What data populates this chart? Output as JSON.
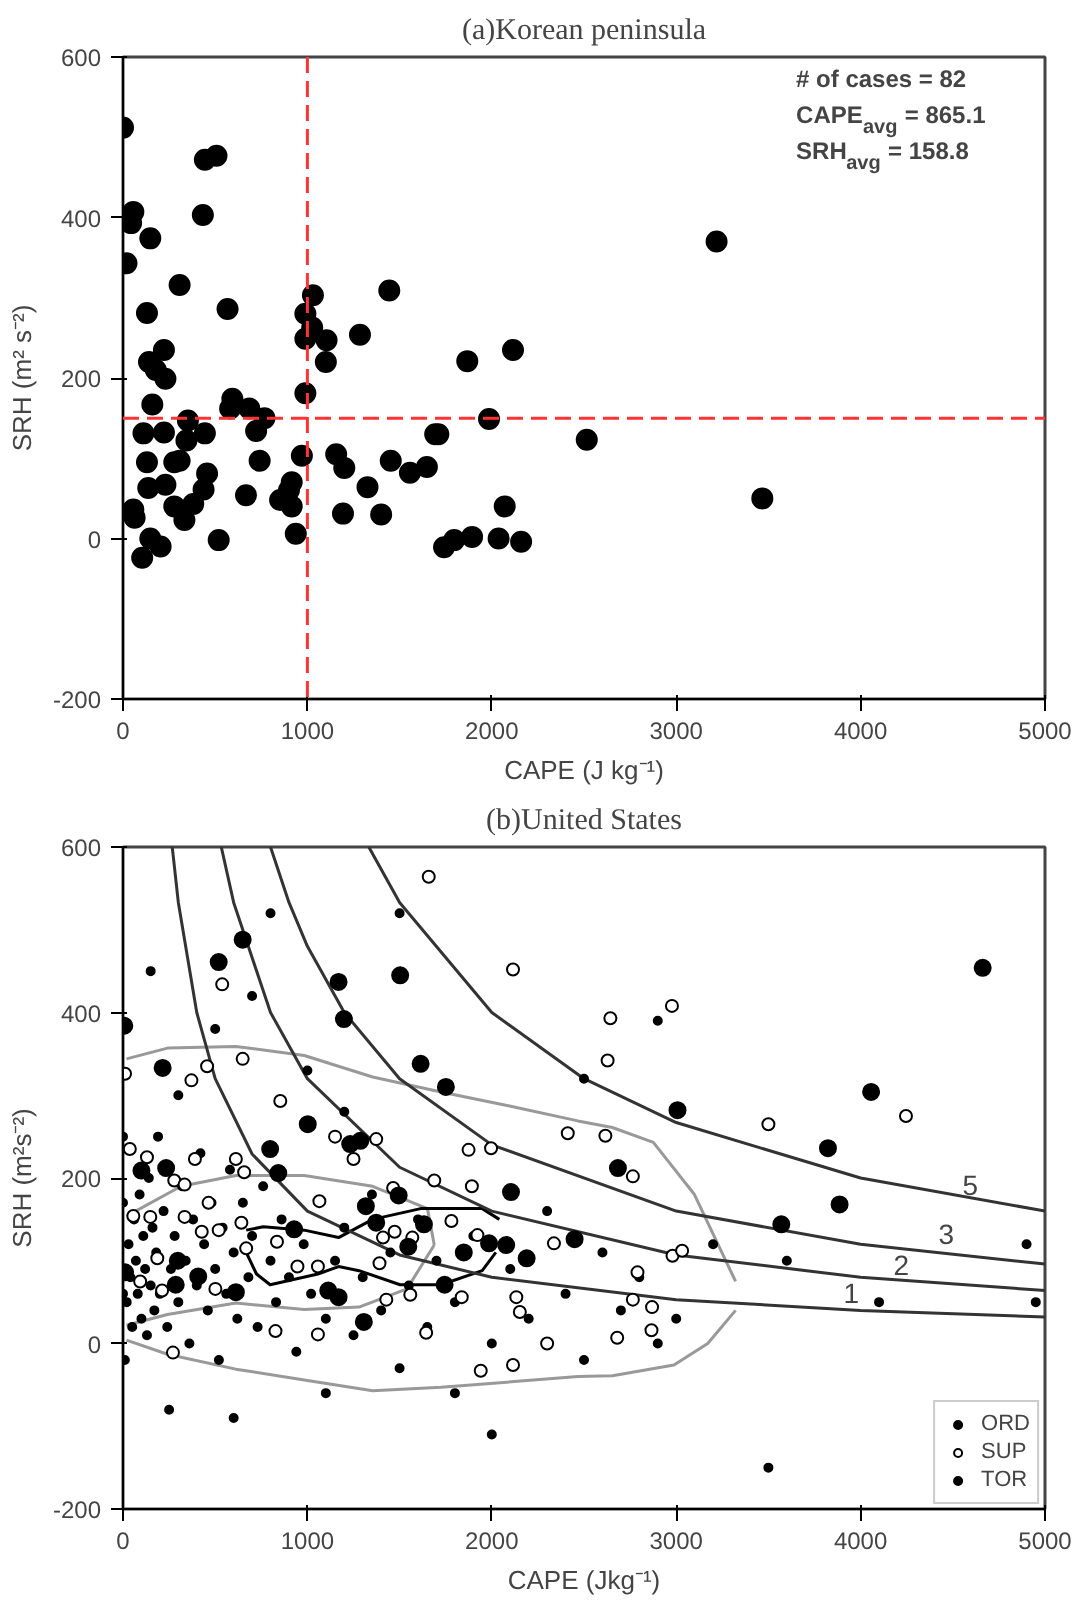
{
  "chart_data": [
    {
      "type": "scatter",
      "title": "(a)Korean peninsula",
      "xlabel": "CAPE (J kg⁻¹)",
      "ylabel": "SRH (m² s⁻²)",
      "xlim": [
        0,
        5000
      ],
      "ylim": [
        -200,
        600
      ],
      "xticks": [
        0,
        1000,
        2000,
        3000,
        4000,
        5000
      ],
      "yticks": [
        -200,
        0,
        200,
        400,
        600
      ],
      "grid": false,
      "series": [
        {
          "color": "#000000",
          "marker": "circle",
          "x": [
            0,
            56,
            44,
            148,
            19,
            444,
            507,
            433,
            307,
            567,
            130,
            222,
            141,
            178,
            230,
            159,
            593,
            581,
            685,
            767,
            722,
            352,
            344,
            444,
            111,
            222,
            130,
            278,
            307,
            456,
            741,
            137,
            230,
            437,
            667,
            278,
            381,
            333,
            56,
            63,
            148,
            204,
            104,
            519,
            915,
            900,
            852,
            915,
            937,
            970,
            989,
            1030,
            989,
            1026,
            989,
            1104,
            1100,
            1285,
            1444,
            1156,
            1200,
            1193,
            1326,
            1400,
            1452,
            1556,
            1648,
            1693,
            1710,
            1867,
            2115,
            1985,
            2070,
            1741,
            1796,
            1893,
            2037,
            2159,
            2515,
            3219,
            3467
          ],
          "values": [
            512,
            407,
            393,
            374,
            343,
            472,
            477,
            403,
            316,
            286,
            281,
            235,
            220,
            210,
            199,
            167,
            174,
            162,
            162,
            150,
            134,
            147,
            122,
            131,
            131,
            132,
            95,
            95,
            97,
            81,
            97,
            63,
            67,
            61,
            54,
            40,
            43,
            23,
            36,
            26,
            0,
            -10,
            -24,
            -2,
            70,
            60,
            48,
            40,
            6,
            103,
            181,
            303,
            280,
            263,
            249,
            247,
            220,
            254,
            309,
            105,
            88,
            31,
            64,
            30,
            97,
            82,
            89,
            130,
            130,
            221,
            235,
            149,
            40,
            -11,
            -2,
            2,
            0,
            -4,
            123,
            370,
            50
          ]
        }
      ],
      "ref_lines": [
        {
          "axis": "x",
          "value": 1000,
          "color": "#ff3333",
          "line_style": "dashed"
        },
        {
          "axis": "y",
          "value": 150,
          "color": "#ff3333",
          "line_style": "dashed"
        }
      ],
      "annotations": [
        "# of cases =   82",
        "CAPE$_{avg}$  =  865.1",
        "SRH$_{avg}$    =  158.8"
      ]
    },
    {
      "type": "scatter",
      "title": "(b)United States",
      "xlabel": "CAPE (Jkg⁻¹)",
      "ylabel": "SRH (m²s⁻²)",
      "xlim": [
        0,
        5000
      ],
      "ylim": [
        -200,
        600
      ],
      "xticks": [
        0,
        1000,
        2000,
        3000,
        4000,
        5000
      ],
      "yticks": [
        -200,
        0,
        200,
        400,
        600
      ],
      "grid": false,
      "legend": "bottom right",
      "series": [
        {
          "type": "line",
          "color": "#999999",
          "x": [
            19,
            241,
            612,
            983,
            1354,
            1725,
            2096,
            2467,
            2654,
            2876,
            3099,
            3322
          ],
          "values": [
            344,
            357,
            359,
            348,
            322,
            304,
            287,
            269,
            261,
            243,
            180,
            75
          ]
        },
        {
          "type": "line",
          "color": "#999999",
          "x": [
            19,
            241,
            612,
            983,
            1354,
            1725,
            2467,
            2654,
            2988,
            3171,
            3322
          ],
          "values": [
            4,
            -13,
            -31,
            -44,
            -57,
            -53,
            -40,
            -39,
            -26,
            0,
            40
          ]
        },
        {
          "type": "line",
          "color": "#999999",
          "x": [
            19,
            315,
            612,
            983,
            1354,
            1651,
            1688
          ],
          "values": [
            154,
            190,
            203,
            203,
            190,
            163,
            119
          ]
        },
        {
          "type": "line",
          "color": "#999999",
          "x": [
            19,
            241,
            612,
            983,
            1280,
            1540,
            1688
          ],
          "values": [
            22,
            35,
            49,
            41,
            44,
            66,
            119
          ]
        },
        {
          "type": "line",
          "color": "#000000",
          "x": [
            668,
            761,
            983,
            1169,
            1354,
            1614,
            1948,
            2041
          ],
          "values": [
            137,
            141,
            137,
            128,
            150,
            163,
            163,
            150
          ]
        },
        {
          "type": "line",
          "color": "#000000",
          "x": [
            668,
            724,
            798,
            1057,
            1169,
            1280,
            1503,
            1725,
            1948,
            2022
          ],
          "values": [
            110,
            84,
            71,
            84,
            93,
            88,
            71,
            71,
            88,
            110
          ]
        },
        {
          "type": "line",
          "color": "#333333",
          "x": [
            267,
            300,
            400,
            500,
            700,
            1000,
            1500,
            2000,
            3000,
            4000,
            5000
          ],
          "values": [
            600,
            533,
            400,
            320,
            229,
            160,
            107,
            80,
            53,
            40,
            32
          ]
        },
        {
          "type": "line",
          "color": "#333333",
          "x": [
            533,
            600,
            800,
            1000,
            1500,
            2000,
            3000,
            4000,
            5000
          ],
          "values": [
            600,
            533,
            400,
            320,
            213,
            160,
            107,
            80,
            64
          ]
        },
        {
          "type": "line",
          "color": "#333333",
          "x": [
            800,
            900,
            1000,
            1200,
            1500,
            2000,
            3000,
            4000,
            5000
          ],
          "values": [
            600,
            533,
            480,
            400,
            320,
            240,
            160,
            120,
            96
          ]
        },
        {
          "type": "line",
          "color": "#333333",
          "x": [
            1333,
            1500,
            2000,
            2500,
            3000,
            4000,
            5000
          ],
          "values": [
            600,
            533,
            400,
            320,
            267,
            200,
            160
          ]
        },
        {
          "type": "scatter",
          "name": "ORD",
          "color": "#000000",
          "marker": "circle",
          "x": [
            20,
            30,
            40,
            50,
            60,
            70,
            80,
            90,
            100,
            110,
            120,
            130,
            140,
            150,
            160,
            170,
            180,
            190,
            200,
            220,
            240,
            260,
            280,
            300,
            320,
            340,
            360,
            380,
            400,
            420,
            440,
            460,
            480,
            500,
            520,
            540,
            560,
            580,
            600,
            620,
            650,
            680,
            700,
            730,
            760,
            800,
            830,
            860,
            900,
            940,
            980,
            1020,
            1100,
            1150,
            1200,
            1250,
            1300,
            1350,
            1400,
            1450,
            1500,
            1550,
            1600,
            1650,
            1700,
            1800,
            1900,
            2000,
            2100,
            2200,
            2300,
            2400,
            2500,
            2600,
            2700,
            2800,
            2900,
            3000,
            300,
            500,
            150,
            700,
            1000,
            1200,
            250,
            600,
            1100,
            2000,
            2500,
            3200,
            3600,
            4100,
            4900,
            4950,
            1800,
            3500,
            800,
            1500,
            2900,
            0,
            0,
            0,
            10
          ],
          "values": [
            50,
            120,
            80,
            20,
            150,
            100,
            60,
            180,
            30,
            130,
            90,
            10,
            200,
            70,
            140,
            40,
            110,
            250,
            60,
            160,
            20,
            90,
            130,
            50,
            190,
            100,
            0,
            150,
            70,
            230,
            120,
            40,
            170,
            90,
            -20,
            140,
            60,
            210,
            110,
            30,
            170,
            80,
            130,
            20,
            190,
            100,
            50,
            150,
            80,
            -10,
            120,
            60,
            30,
            100,
            140,
            10,
            80,
            180,
            40,
            110,
            -30,
            70,
            150,
            20,
            100,
            50,
            130,
            0,
            90,
            30,
            160,
            60,
            -20,
            110,
            40,
            80,
            0,
            30,
            300,
            380,
            450,
            420,
            330,
            280,
            -80,
            -90,
            -60,
            -110,
            320,
            120,
            100,
            50,
            120,
            50,
            -60,
            -150,
            520,
            520,
            390,
            250,
            170,
            60,
            -20
          ]
        },
        {
          "type": "scatter",
          "name": "SUP",
          "color": "#000000",
          "marker": "circle_open",
          "x": [
            1658,
            2115,
            538,
            649,
            11,
            371,
            456,
            853,
            2412,
            2628,
            2616,
            1150,
            1250,
            1373,
            1874,
            1996,
            37,
            130,
            390,
            612,
            657,
            278,
            334,
            1065,
            1465,
            1688,
            1892,
            56,
            148,
            464,
            519,
            334,
            642,
            835,
            1410,
            1473,
            1569,
            1781,
            1922,
            2337,
            668,
            946,
            1057,
            1391,
            186,
            93,
            212,
            501,
            1428,
            1558,
            1837,
            2133,
            2152,
            827,
            1057,
            1644,
            1940,
            2115,
            2300,
            271,
            427,
            2977,
            2643,
            3500,
            4246,
            2765,
            2980,
            3032,
            2790,
            2765,
            2869,
            2866,
            2680
          ],
          "values": [
            564,
            452,
            434,
            344,
            326,
            318,
            335,
            293,
            254,
            342,
            251,
            250,
            223,
            247,
            234,
            236,
            235,
            225,
            223,
            223,
            207,
            197,
            192,
            172,
            188,
            197,
            190,
            154,
            153,
            170,
            137,
            153,
            146,
            123,
            128,
            135,
            128,
            148,
            131,
            121,
            115,
            93,
            93,
            97,
            103,
            75,
            64,
            66,
            53,
            59,
            56,
            56,
            38,
            15,
            11,
            13,
            -33,
            -26,
            0,
            -11,
            135,
            408,
            393,
            265,
            275,
            202,
            106,
            112,
            86,
            53,
            44,
            16,
            7
          ]
        },
        {
          "type": "scatter",
          "name": "TOR",
          "color": "#000000",
          "marker": "circle",
          "x": [
            7,
            649,
            519,
            1169,
            1503,
            1198,
            1614,
            1751,
            215,
            1002,
            798,
            1232,
            1287,
            100,
            234,
            842,
            1495,
            2104,
            1317,
            928,
            1373,
            1632,
            1547,
            1848,
            1985,
            2078,
            2189,
            2449,
            11,
            297,
            408,
            286,
            612,
            1113,
            1169,
            1306,
            1744,
            4662,
            3007,
            4057,
            3823,
            3886,
            3570,
            2684
          ],
          "values": [
            384,
            488,
            461,
            437,
            445,
            392,
            338,
            310,
            333,
            265,
            235,
            241,
            245,
            209,
            212,
            206,
            179,
            183,
            166,
            138,
            146,
            144,
            117,
            110,
            121,
            119,
            103,
            126,
            86,
            100,
            81,
            71,
            62,
            64,
            56,
            26,
            71,
            454,
            282,
            304,
            236,
            168,
            144,
            212
          ]
        }
      ],
      "annotations": [
        {
          "text": "1",
          "x": 3950,
          "y": 34
        },
        {
          "text": "2",
          "x": 4220,
          "y": 68
        },
        {
          "text": "3",
          "x": 4465,
          "y": 106
        },
        {
          "text": "5",
          "x": 4595,
          "y": 165
        }
      ]
    }
  ]
}
